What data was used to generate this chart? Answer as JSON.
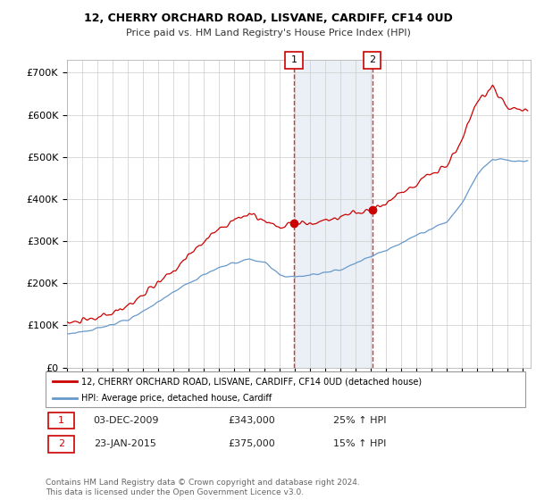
{
  "title": "12, CHERRY ORCHARD ROAD, LISVANE, CARDIFF, CF14 0UD",
  "subtitle": "Price paid vs. HM Land Registry's House Price Index (HPI)",
  "ylabel_ticks": [
    "£0",
    "£100K",
    "£200K",
    "£300K",
    "£400K",
    "£500K",
    "£600K",
    "£700K"
  ],
  "ytick_values": [
    0,
    100000,
    200000,
    300000,
    400000,
    500000,
    600000,
    700000
  ],
  "ylim": [
    0,
    730000
  ],
  "xlim_start": 1995.0,
  "xlim_end": 2025.5,
  "red_line_color": "#cc0000",
  "blue_line_color": "#6699cc",
  "shaded_region_color": "#dce6f1",
  "shaded_region_alpha": 0.6,
  "vertical_line_color": "#dd3333",
  "vertical_line_style": "--",
  "marker1_x": 2009.92,
  "marker1_y": 343000,
  "marker1_label": "1",
  "marker2_x": 2015.07,
  "marker2_y": 375000,
  "marker2_label": "2",
  "annotation1_date": "03-DEC-2009",
  "annotation1_price": "£343,000",
  "annotation1_hpi": "25% ↑ HPI",
  "annotation2_date": "23-JAN-2015",
  "annotation2_price": "£375,000",
  "annotation2_hpi": "15% ↑ HPI",
  "legend_label_red": "12, CHERRY ORCHARD ROAD, LISVANE, CARDIFF, CF14 0UD (detached house)",
  "legend_label_blue": "HPI: Average price, detached house, Cardiff",
  "footer_text": "Contains HM Land Registry data © Crown copyright and database right 2024.\nThis data is licensed under the Open Government Licence v3.0.",
  "bg_color": "#ffffff",
  "plot_bg_color": "#ffffff",
  "grid_color": "#cccccc"
}
